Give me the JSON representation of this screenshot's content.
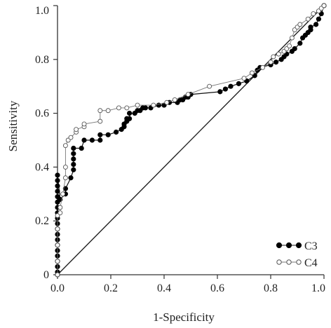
{
  "chart_data": {
    "type": "line",
    "xlabel": "1-Specificity",
    "ylabel": "Sensitivity",
    "xlim": [
      0,
      1
    ],
    "ylim": [
      0,
      1
    ],
    "x_ticks": [
      {
        "value": 0,
        "label": "0.0"
      },
      {
        "value": 0.2,
        "label": "0.2"
      },
      {
        "value": 0.4,
        "label": "0.4"
      },
      {
        "value": 0.6,
        "label": "0.6"
      },
      {
        "value": 0.8,
        "label": "0.8"
      },
      {
        "value": 1.0,
        "label": "1.0"
      }
    ],
    "y_ticks": [
      {
        "value": 0,
        "label": "0"
      },
      {
        "value": 0.2,
        "label": "0.2"
      },
      {
        "value": 0.4,
        "label": "0.4"
      },
      {
        "value": 0.6,
        "label": "0.6"
      },
      {
        "value": 0.8,
        "label": "0.8"
      },
      {
        "value": 1.0,
        "label": "1.0"
      }
    ],
    "reference_line": {
      "x": [
        0,
        1
      ],
      "y": [
        0,
        1
      ]
    },
    "legend_position": "bottom-right",
    "series": [
      {
        "name": "C3",
        "marker": "filled-circle",
        "color": "#000000",
        "x": [
          0.0,
          0.0,
          0.0,
          0.0,
          0.0,
          0.0,
          0.0,
          0.0,
          0.0,
          0.0,
          0.0,
          0.0,
          0.0,
          0.0,
          0.0,
          0.0,
          0.0,
          0.0,
          0.0,
          0.0,
          0.01,
          0.03,
          0.03,
          0.05,
          0.06,
          0.06,
          0.06,
          0.06,
          0.06,
          0.09,
          0.1,
          0.13,
          0.16,
          0.16,
          0.19,
          0.22,
          0.24,
          0.25,
          0.25,
          0.26,
          0.26,
          0.27,
          0.27,
          0.29,
          0.3,
          0.31,
          0.32,
          0.33,
          0.35,
          0.38,
          0.4,
          0.42,
          0.45,
          0.46,
          0.47,
          0.48,
          0.49,
          0.5,
          0.61,
          0.63,
          0.65,
          0.68,
          0.71,
          0.74,
          0.75,
          0.76,
          0.8,
          0.82,
          0.84,
          0.85,
          0.86,
          0.88,
          0.89,
          0.91,
          0.92,
          0.93,
          0.94,
          0.95,
          0.95,
          0.97,
          0.98,
          0.99,
          1.0
        ],
        "y": [
          0.0,
          0.01,
          0.03,
          0.05,
          0.07,
          0.09,
          0.11,
          0.13,
          0.15,
          0.17,
          0.19,
          0.21,
          0.23,
          0.25,
          0.27,
          0.29,
          0.31,
          0.33,
          0.35,
          0.37,
          0.28,
          0.3,
          0.32,
          0.36,
          0.39,
          0.41,
          0.43,
          0.45,
          0.47,
          0.47,
          0.5,
          0.5,
          0.5,
          0.52,
          0.52,
          0.53,
          0.54,
          0.55,
          0.56,
          0.57,
          0.58,
          0.58,
          0.6,
          0.6,
          0.61,
          0.61,
          0.62,
          0.62,
          0.62,
          0.63,
          0.63,
          0.64,
          0.64,
          0.65,
          0.65,
          0.66,
          0.66,
          0.67,
          0.68,
          0.69,
          0.7,
          0.71,
          0.72,
          0.74,
          0.76,
          0.77,
          0.78,
          0.79,
          0.8,
          0.81,
          0.82,
          0.83,
          0.84,
          0.86,
          0.88,
          0.89,
          0.9,
          0.91,
          0.92,
          0.93,
          0.95,
          0.97,
          1.0
        ]
      },
      {
        "name": "C4",
        "marker": "hollow-circle",
        "color": "#555555",
        "x": [
          0.0,
          0.0,
          0.0,
          0.0,
          0.0,
          0.01,
          0.01,
          0.02,
          0.03,
          0.03,
          0.03,
          0.04,
          0.05,
          0.07,
          0.07,
          0.1,
          0.1,
          0.16,
          0.16,
          0.19,
          0.23,
          0.26,
          0.3,
          0.36,
          0.41,
          0.44,
          0.49,
          0.57,
          0.7,
          0.73,
          0.77,
          0.8,
          0.81,
          0.83,
          0.85,
          0.86,
          0.87,
          0.88,
          0.89,
          0.9,
          0.91,
          0.94,
          0.96,
          0.98,
          0.99,
          1.0
        ],
        "y": [
          0.0,
          0.05,
          0.11,
          0.17,
          0.22,
          0.23,
          0.25,
          0.3,
          0.36,
          0.4,
          0.48,
          0.5,
          0.51,
          0.53,
          0.54,
          0.55,
          0.56,
          0.57,
          0.61,
          0.61,
          0.62,
          0.62,
          0.63,
          0.63,
          0.64,
          0.65,
          0.67,
          0.7,
          0.73,
          0.75,
          0.77,
          0.79,
          0.81,
          0.82,
          0.83,
          0.84,
          0.85,
          0.88,
          0.91,
          0.92,
          0.93,
          0.95,
          0.97,
          0.98,
          0.99,
          1.0
        ]
      }
    ]
  },
  "legend": {
    "items": [
      {
        "label": "C3"
      },
      {
        "label": "C4"
      }
    ]
  }
}
